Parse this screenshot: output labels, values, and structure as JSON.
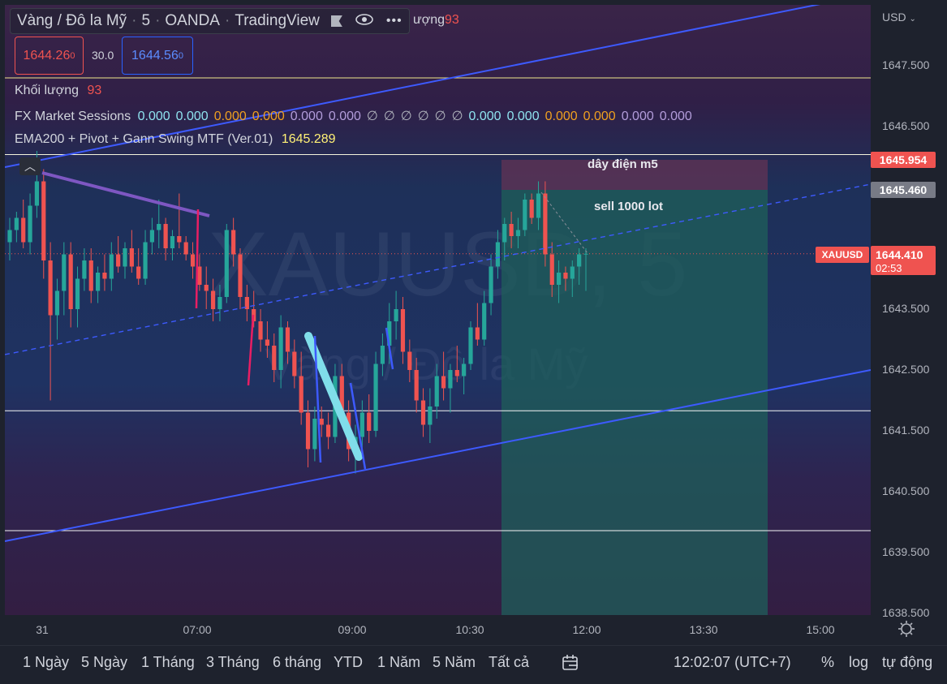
{
  "header": {
    "symbol": "Vàng / Đô la Mỹ",
    "interval": "5",
    "exchange": "OANDA",
    "provider": "TradingView",
    "volume_partial": "ượng",
    "volume_partial_value": "93"
  },
  "prices": {
    "sell": "1644.26",
    "sell_sup": "0",
    "spread": "30.0",
    "buy": "1644.56",
    "buy_sup": "0"
  },
  "indicators": {
    "volume_label": "Khối lượng",
    "volume_value": "93",
    "fx_label": "FX Market Sessions",
    "fx_values": [
      {
        "text": "0.000",
        "color": "#8fe3ef"
      },
      {
        "text": "0.000",
        "color": "#8fe3ef"
      },
      {
        "text": "0.000",
        "color": "#f0a020"
      },
      {
        "text": "0.000",
        "color": "#f0a020"
      },
      {
        "text": "0.000",
        "color": "#b39ddb"
      },
      {
        "text": "0.000",
        "color": "#b39ddb"
      },
      {
        "text": "∅",
        "color": "#b2b5be"
      },
      {
        "text": "∅",
        "color": "#b2b5be"
      },
      {
        "text": "∅",
        "color": "#b2b5be"
      },
      {
        "text": "∅",
        "color": "#b2b5be"
      },
      {
        "text": "∅",
        "color": "#b2b5be"
      },
      {
        "text": "∅",
        "color": "#b2b5be"
      },
      {
        "text": "0.000",
        "color": "#8fe3ef"
      },
      {
        "text": "0.000",
        "color": "#8fe3ef"
      },
      {
        "text": "0.000",
        "color": "#f0a020"
      },
      {
        "text": "0.000",
        "color": "#f0a020"
      },
      {
        "text": "0.000",
        "color": "#b39ddb"
      },
      {
        "text": "0.000",
        "color": "#b39ddb"
      }
    ],
    "ema_label": "EMA200 + Pivot + Gann Swing MTF (Ver.01)",
    "ema_value": "1645.289"
  },
  "watermark": {
    "symbol": "XAUUSD, 5",
    "name": "Vàng / Đô la Mỹ"
  },
  "annotations": {
    "box_top_text": "dây điện m5",
    "box_bottom_text": "sell 1000 lot"
  },
  "price_axis": {
    "currency": "USD",
    "ticks": [
      "1647.500",
      "1646.500",
      "1645.954",
      "1645.460",
      "1644.410",
      "1643.500",
      "1642.500",
      "1641.500",
      "1640.500",
      "1639.500",
      "1638.500"
    ],
    "tick_values": [
      1647.5,
      1646.5,
      1643.5,
      1642.5,
      1641.5,
      1640.5,
      1639.5,
      1638.5
    ],
    "label_stop": "1645.954",
    "label_entry": "1645.460",
    "label_current": "1644.410",
    "countdown": "02:53",
    "symbol_tag": "XAUUSD"
  },
  "time_axis": {
    "labels": [
      "31",
      "07:00",
      "09:00",
      "10:30",
      "12:00",
      "13:30",
      "15:00"
    ]
  },
  "bottom_bar": {
    "ranges": [
      "1 Ngày",
      "5 Ngày",
      "1 Tháng",
      "3 Tháng",
      "6 tháng",
      "YTD",
      "1 Năm",
      "5 Năm",
      "Tất cả"
    ],
    "clock": "12:02:07 (UTC+7)",
    "percent": "%",
    "log": "log",
    "auto": "tự động"
  },
  "colors": {
    "up": "#26a69a",
    "down": "#ef5350",
    "channel": "#3d5afe",
    "stop_zone": "#5a3355",
    "target_zone": "#1f5f5a"
  },
  "chart_data": {
    "type": "candlestick",
    "y_range": [
      1638.5,
      1648.0
    ],
    "candles": [
      [
        1644.6,
        1645.0,
        1644.3,
        1644.8
      ],
      [
        1644.8,
        1645.1,
        1644.6,
        1645.0
      ],
      [
        1645.0,
        1645.3,
        1644.5,
        1644.6
      ],
      [
        1644.6,
        1645.4,
        1644.4,
        1645.2
      ],
      [
        1645.2,
        1646.1,
        1645.0,
        1645.6
      ],
      [
        1645.6,
        1645.8,
        1644.0,
        1644.3
      ],
      [
        1644.3,
        1644.6,
        1642.0,
        1643.4
      ],
      [
        1643.4,
        1644.0,
        1643.0,
        1643.8
      ],
      [
        1643.8,
        1644.6,
        1643.4,
        1644.4
      ],
      [
        1644.4,
        1644.6,
        1643.2,
        1643.5
      ],
      [
        1643.5,
        1644.2,
        1643.2,
        1644.0
      ],
      [
        1644.0,
        1644.5,
        1643.8,
        1644.3
      ],
      [
        1644.3,
        1644.5,
        1643.6,
        1643.8
      ],
      [
        1643.8,
        1644.2,
        1643.6,
        1644.1
      ],
      [
        1644.1,
        1644.4,
        1643.8,
        1644.0
      ],
      [
        1644.0,
        1644.6,
        1643.8,
        1644.4
      ],
      [
        1644.4,
        1644.7,
        1644.1,
        1644.2
      ],
      [
        1644.2,
        1644.6,
        1644.0,
        1644.5
      ],
      [
        1644.5,
        1644.8,
        1644.1,
        1644.2
      ],
      [
        1644.2,
        1644.5,
        1643.9,
        1644.0
      ],
      [
        1644.0,
        1644.8,
        1643.9,
        1644.6
      ],
      [
        1644.6,
        1645.0,
        1644.4,
        1644.8
      ],
      [
        1644.8,
        1645.3,
        1644.5,
        1644.9
      ],
      [
        1644.9,
        1645.0,
        1644.3,
        1644.5
      ],
      [
        1644.5,
        1644.8,
        1644.3,
        1644.7
      ],
      [
        1644.7,
        1645.4,
        1644.5,
        1644.6
      ],
      [
        1644.6,
        1644.7,
        1644.3,
        1644.4
      ],
      [
        1644.4,
        1644.6,
        1644.0,
        1644.2
      ],
      [
        1644.2,
        1644.4,
        1643.8,
        1643.9
      ],
      [
        1643.9,
        1644.2,
        1643.5,
        1643.8
      ],
      [
        1643.8,
        1644.0,
        1643.3,
        1643.5
      ],
      [
        1643.5,
        1643.9,
        1643.3,
        1643.7
      ],
      [
        1643.7,
        1644.9,
        1643.6,
        1644.8
      ],
      [
        1644.8,
        1645.0,
        1644.2,
        1644.4
      ],
      [
        1644.4,
        1644.5,
        1643.5,
        1643.7
      ],
      [
        1643.7,
        1643.9,
        1643.3,
        1643.5
      ],
      [
        1643.5,
        1643.8,
        1643.2,
        1643.3
      ],
      [
        1643.3,
        1643.5,
        1642.8,
        1643.0
      ],
      [
        1643.0,
        1643.3,
        1642.7,
        1642.9
      ],
      [
        1642.9,
        1643.1,
        1642.3,
        1642.5
      ],
      [
        1642.5,
        1643.4,
        1642.2,
        1643.2
      ],
      [
        1643.2,
        1643.3,
        1642.6,
        1642.8
      ],
      [
        1642.8,
        1643.0,
        1642.2,
        1642.4
      ],
      [
        1642.4,
        1642.8,
        1641.6,
        1641.8
      ],
      [
        1641.8,
        1642.0,
        1640.9,
        1641.2
      ],
      [
        1641.2,
        1641.9,
        1641.0,
        1641.7
      ],
      [
        1641.7,
        1641.9,
        1641.4,
        1641.6
      ],
      [
        1641.6,
        1641.8,
        1641.2,
        1641.4
      ],
      [
        1641.4,
        1642.6,
        1641.3,
        1642.4
      ],
      [
        1642.4,
        1642.6,
        1641.6,
        1641.8
      ],
      [
        1641.8,
        1642.0,
        1641.0,
        1641.2
      ],
      [
        1641.2,
        1641.6,
        1640.8,
        1641.4
      ],
      [
        1641.4,
        1642.0,
        1641.2,
        1641.8
      ],
      [
        1641.8,
        1642.1,
        1641.3,
        1641.5
      ],
      [
        1641.5,
        1642.8,
        1641.4,
        1642.6
      ],
      [
        1642.6,
        1643.1,
        1642.4,
        1642.9
      ],
      [
        1642.9,
        1643.6,
        1642.6,
        1643.3
      ],
      [
        1643.3,
        1643.8,
        1643.0,
        1643.5
      ],
      [
        1643.5,
        1643.7,
        1642.6,
        1642.8
      ],
      [
        1642.8,
        1643.0,
        1642.3,
        1642.5
      ],
      [
        1642.5,
        1642.7,
        1641.8,
        1642.0
      ],
      [
        1642.0,
        1642.2,
        1641.4,
        1641.6
      ],
      [
        1641.6,
        1642.2,
        1641.3,
        1641.9
      ],
      [
        1641.9,
        1642.6,
        1641.7,
        1642.4
      ],
      [
        1642.4,
        1642.8,
        1642.0,
        1642.2
      ],
      [
        1642.2,
        1642.6,
        1641.8,
        1642.5
      ],
      [
        1642.5,
        1642.9,
        1642.3,
        1642.4
      ],
      [
        1642.4,
        1642.7,
        1642.1,
        1642.6
      ],
      [
        1642.6,
        1643.3,
        1642.5,
        1643.2
      ],
      [
        1643.2,
        1643.6,
        1642.9,
        1643.0
      ],
      [
        1643.0,
        1643.8,
        1642.9,
        1643.6
      ],
      [
        1643.6,
        1644.4,
        1643.4,
        1644.2
      ],
      [
        1644.2,
        1644.8,
        1644.0,
        1644.6
      ],
      [
        1644.6,
        1645.0,
        1644.3,
        1644.9
      ],
      [
        1644.9,
        1645.1,
        1644.5,
        1644.7
      ],
      [
        1644.7,
        1645.0,
        1644.5,
        1644.8
      ],
      [
        1644.8,
        1645.4,
        1644.7,
        1645.3
      ],
      [
        1645.3,
        1645.4,
        1644.9,
        1645.0
      ],
      [
        1645.0,
        1645.6,
        1644.8,
        1645.4
      ],
      [
        1645.4,
        1645.6,
        1644.2,
        1644.4
      ],
      [
        1644.4,
        1644.6,
        1643.7,
        1643.9
      ],
      [
        1643.9,
        1644.3,
        1643.6,
        1644.1
      ],
      [
        1644.1,
        1644.2,
        1643.8,
        1644.0
      ],
      [
        1644.0,
        1644.3,
        1643.7,
        1644.2
      ],
      [
        1644.2,
        1644.5,
        1643.9,
        1644.4
      ],
      [
        1644.4,
        1644.5,
        1643.8,
        1644.41
      ]
    ]
  }
}
